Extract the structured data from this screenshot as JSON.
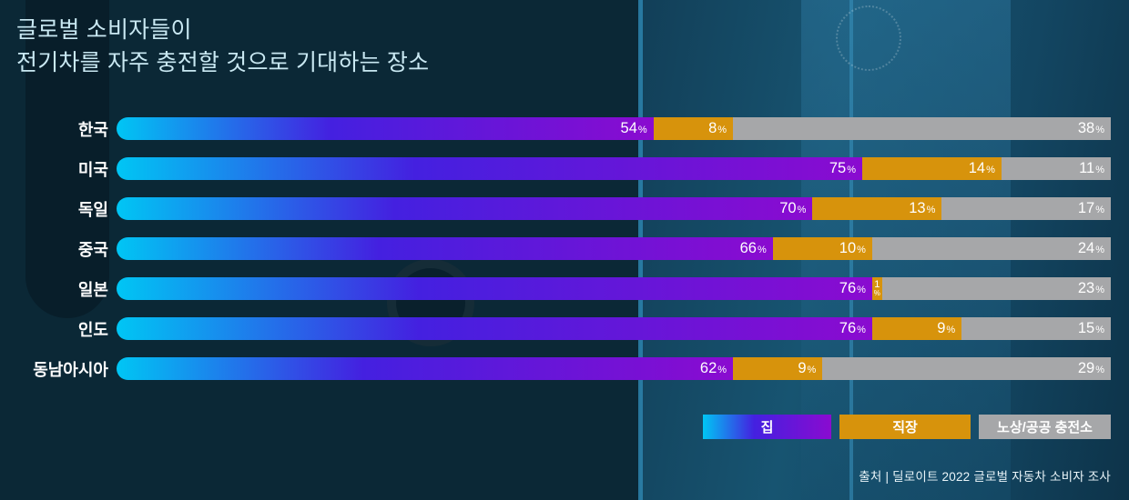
{
  "title": {
    "line1": "글로벌 소비자들이",
    "line2": "전기차를 자주 충전할 것으로 기대하는 장소"
  },
  "chart_data": {
    "type": "bar",
    "subtype": "horizontal-stacked",
    "title": "글로벌 소비자들이 전기차를 자주 충전할 것으로 기대하는 장소",
    "categories": [
      "한국",
      "미국",
      "독일",
      "중국",
      "일본",
      "인도",
      "동남아시아"
    ],
    "series": [
      {
        "name": "집",
        "values": [
          54,
          75,
          70,
          66,
          76,
          76,
          62
        ]
      },
      {
        "name": "직장",
        "values": [
          8,
          14,
          13,
          10,
          1,
          9,
          9
        ]
      },
      {
        "name": "노상/공공 충전소",
        "values": [
          38,
          11,
          17,
          24,
          23,
          15,
          29
        ]
      }
    ],
    "value_suffix": "%",
    "xlim": [
      0,
      100
    ],
    "grid": false,
    "legend_position": "bottom-right"
  },
  "colors": {
    "background": "#0b2836",
    "home_gradient": [
      "#00c6f4",
      "#4420e0",
      "#8a0bd0"
    ],
    "work": "#d7930c",
    "public": "#a6a7a9",
    "title_text": "#c9e8f2",
    "bar_label_text": "#ffffff"
  },
  "source": "출처 | 딜로이트 2022 글로벌 자동차 소비자 조사"
}
